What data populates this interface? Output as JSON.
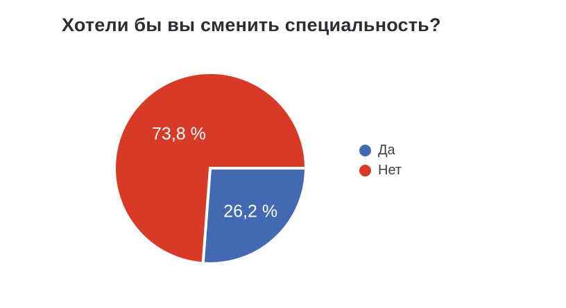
{
  "page": {
    "background_color": "#ffffff"
  },
  "chart_data": {
    "type": "pie",
    "title": "Хотели бы вы сменить специальность?",
    "title_color": "#2b2e33",
    "slices": [
      {
        "label": "Да",
        "value": 26.2,
        "display_value": "26,2 %",
        "color": "#4269b2"
      },
      {
        "label": "Нет",
        "value": 73.8,
        "display_value": "73,8 %",
        "color": "#d73b28"
      }
    ],
    "start_angle_deg": 0,
    "direction": "clockwise",
    "legend_position": "right",
    "slice_label_color": "#ffffff",
    "slice_separator_color": "#ffffff",
    "legend_text_color": "#3f4245"
  }
}
